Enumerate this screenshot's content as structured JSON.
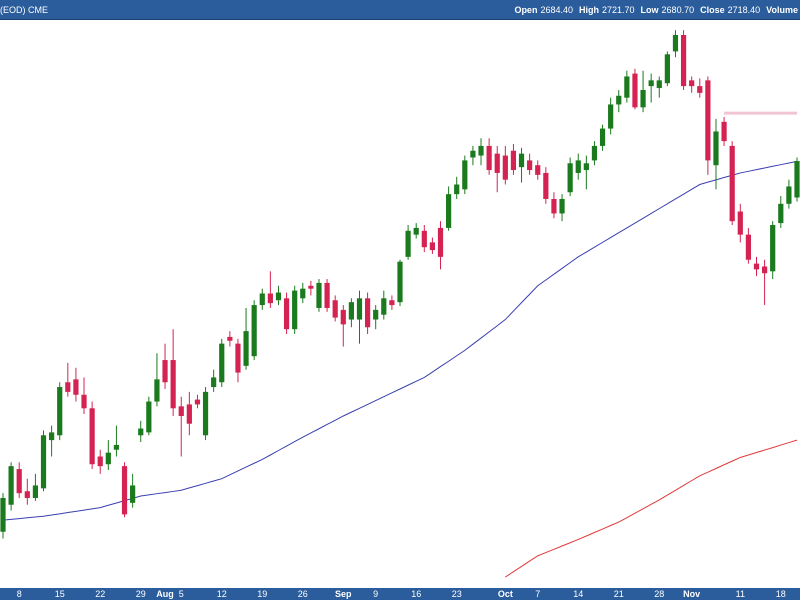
{
  "chart_data": {
    "type": "candlestick",
    "header": {
      "left": "(EOD) CME",
      "fields": [
        {
          "label": "Open",
          "value": "2684.40"
        },
        {
          "label": "High",
          "value": "2721.70"
        },
        {
          "label": "Low",
          "value": "2680.70"
        },
        {
          "label": "Close",
          "value": "2718.40"
        }
      ],
      "trailing": "Volume"
    },
    "categories": [
      null,
      null,
      "8",
      null,
      null,
      null,
      null,
      "15",
      null,
      null,
      null,
      null,
      "22",
      null,
      null,
      null,
      null,
      "29",
      null,
      null,
      "Aug",
      null,
      "5",
      null,
      null,
      null,
      null,
      "12",
      null,
      null,
      null,
      null,
      "19",
      null,
      null,
      null,
      null,
      "26",
      null,
      null,
      null,
      null,
      "Sep",
      null,
      null,
      null,
      "9",
      null,
      null,
      null,
      null,
      "16",
      null,
      null,
      null,
      null,
      "23",
      null,
      null,
      null,
      null,
      null,
      "Oct",
      null,
      null,
      null,
      "7",
      null,
      null,
      null,
      null,
      "14",
      null,
      null,
      null,
      null,
      "21",
      null,
      null,
      null,
      null,
      "28",
      null,
      null,
      null,
      "Nov",
      null,
      null,
      null,
      null,
      null,
      "11",
      null,
      null,
      null,
      null,
      "18",
      null,
      null
    ],
    "ohlc": {
      "open": [
        2372.5,
        2397.7,
        2431.0,
        2410.3,
        2404.0,
        2413.0,
        2458.0,
        2462.5,
        2512.0,
        2514.7,
        2500.3,
        2487.7,
        2442.7,
        2435.5,
        2449.0,
        2433.7,
        2399.5,
        2462.5,
        2465.2,
        2494.0,
        2532.7,
        2532.7,
        2489.5,
        2491.3,
        2495.8,
        2462.5,
        2507.5,
        2512.0,
        2554.3,
        2548.0,
        2527.3,
        2536.3,
        2584.0,
        2594.8,
        2588.5,
        2590.3,
        2561.5,
        2590.3,
        2602.0,
        2581.3,
        2604.7,
        2588.5,
        2579.5,
        2570.5,
        2570.5,
        2590.3,
        2570.5,
        2575.0,
        2588.5,
        2586.7,
        2629.0,
        2649.7,
        2653.3,
        2642.5,
        2656.0,
        2656.0,
        2687.5,
        2692.0,
        2721.7,
        2723.5,
        2732.5,
        2725.3,
        2723.5,
        2728.0,
        2712.7,
        2719.0,
        2714.5,
        2707.3,
        2683.0,
        2669.5,
        2689.3,
        2707.3,
        2710.0,
        2719.0,
        2732.5,
        2748.7,
        2771.2,
        2777.5,
        2800.0,
        2768.5,
        2788.3,
        2786.5,
        2791.0,
        2820.7,
        2836.0,
        2793.7,
        2788.3,
        2793.7,
        2714.5,
        2755.0,
        2732.5,
        2671.3,
        2649.7,
        2622.7,
        2620.0,
        2615.5,
        2660.5,
        2678.5,
        2684.4
      ],
      "high": [
        2408.5,
        2437.3,
        2437.3,
        2422.0,
        2426.5,
        2467.0,
        2471.5,
        2512.0,
        2530.0,
        2525.5,
        2516.5,
        2494.0,
        2449.0,
        2458.0,
        2471.5,
        2437.3,
        2426.5,
        2476.0,
        2498.5,
        2539.0,
        2548.0,
        2561.5,
        2498.5,
        2503.0,
        2500.3,
        2507.5,
        2523.7,
        2552.5,
        2559.7,
        2552.5,
        2581.3,
        2588.5,
        2599.3,
        2615.5,
        2602.0,
        2595.7,
        2602.0,
        2604.7,
        2606.5,
        2608.3,
        2608.3,
        2593.0,
        2584.0,
        2590.3,
        2597.5,
        2595.7,
        2584.0,
        2597.5,
        2593.0,
        2626.3,
        2658.7,
        2660.5,
        2658.7,
        2647.0,
        2662.3,
        2694.7,
        2703.7,
        2723.5,
        2732.5,
        2739.7,
        2739.7,
        2732.5,
        2732.5,
        2734.3,
        2730.7,
        2725.3,
        2719.0,
        2712.7,
        2689.3,
        2687.5,
        2721.7,
        2725.3,
        2723.5,
        2737.0,
        2752.3,
        2777.5,
        2784.7,
        2802.7,
        2804.5,
        2802.7,
        2800.0,
        2797.3,
        2820.7,
        2840.5,
        2840.5,
        2797.3,
        2795.5,
        2797.3,
        2757.7,
        2759.5,
        2737.0,
        2678.5,
        2656.0,
        2629.0,
        2626.3,
        2662.3,
        2685.7,
        2701.0,
        2721.7
      ],
      "low": [
        2366.2,
        2392.3,
        2404.0,
        2397.7,
        2401.3,
        2410.3,
        2442.7,
        2458.0,
        2498.5,
        2494.0,
        2482.3,
        2431.0,
        2426.5,
        2430.1,
        2442.7,
        2386.0,
        2395.0,
        2456.2,
        2462.5,
        2489.5,
        2505.7,
        2480.5,
        2442.7,
        2462.5,
        2487.7,
        2458.0,
        2503.0,
        2507.5,
        2545.3,
        2512.0,
        2523.7,
        2532.7,
        2579.5,
        2581.3,
        2584.0,
        2557.0,
        2557.0,
        2585.8,
        2593.0,
        2577.7,
        2577.7,
        2568.7,
        2545.3,
        2563.3,
        2548.0,
        2557.0,
        2561.5,
        2570.5,
        2579.5,
        2583.1,
        2626.3,
        2646.1,
        2633.5,
        2631.7,
        2617.3,
        2653.3,
        2683.0,
        2687.5,
        2714.5,
        2714.5,
        2705.5,
        2689.3,
        2696.5,
        2705.5,
        2698.3,
        2705.5,
        2701.0,
        2678.5,
        2665.0,
        2662.3,
        2685.7,
        2701.0,
        2692.0,
        2714.5,
        2728.0,
        2743.3,
        2764.0,
        2773.0,
        2766.7,
        2764.0,
        2773.0,
        2777.5,
        2788.3,
        2815.3,
        2784.7,
        2782.0,
        2777.5,
        2705.5,
        2692.0,
        2732.5,
        2658.7,
        2642.5,
        2622.7,
        2611.0,
        2584.0,
        2608.3,
        2656.0,
        2674.0,
        2680.7
      ],
      "close": [
        2404.0,
        2433.7,
        2408.5,
        2404.0,
        2415.7,
        2462.5,
        2465.2,
        2507.5,
        2503.0,
        2500.3,
        2487.7,
        2435.5,
        2433.7,
        2446.3,
        2453.5,
        2388.7,
        2415.7,
        2468.8,
        2494.0,
        2514.7,
        2512.0,
        2487.7,
        2480.5,
        2473.3,
        2491.3,
        2503.0,
        2516.5,
        2548.0,
        2550.7,
        2521.0,
        2559.7,
        2584.0,
        2594.8,
        2585.8,
        2595.7,
        2561.5,
        2597.5,
        2599.3,
        2599.3,
        2604.7,
        2581.3,
        2572.3,
        2566.0,
        2586.7,
        2590.3,
        2563.3,
        2579.5,
        2590.3,
        2584.0,
        2624.5,
        2653.3,
        2656.0,
        2638.0,
        2635.3,
        2629.0,
        2687.5,
        2696.5,
        2719.0,
        2728.0,
        2732.5,
        2710.0,
        2707.3,
        2701.0,
        2710.0,
        2725.3,
        2710.0,
        2705.5,
        2683.0,
        2669.5,
        2683.0,
        2716.3,
        2719.0,
        2716.3,
        2732.5,
        2748.7,
        2771.2,
        2779.3,
        2797.3,
        2768.5,
        2784.7,
        2793.7,
        2793.7,
        2818.0,
        2836.0,
        2788.3,
        2788.3,
        2782.0,
        2719.0,
        2746.0,
        2737.0,
        2662.3,
        2649.7,
        2626.3,
        2617.3,
        2613.7,
        2658.7,
        2678.5,
        2694.7,
        2718.4
      ]
    },
    "up_color": "#1b7a1e",
    "down_color": "#d42352",
    "lines": [
      {
        "color": "#3a3fb0",
        "width": 1,
        "values": [
          2383.3,
          2384.0,
          2384.7,
          2385.5,
          2386.2,
          2386.9,
          2388.1,
          2389.2,
          2390.4,
          2391.5,
          2392.7,
          2393.8,
          2395.0,
          2397.2,
          2399.3,
          2401.5,
          2403.6,
          2405.8,
          2406.9,
          2408.0,
          2409.0,
          2410.1,
          2411.2,
          2413.4,
          2415.5,
          2417.7,
          2419.8,
          2422.0,
          2425.6,
          2429.2,
          2432.8,
          2436.4,
          2440.0,
          2444.1,
          2448.3,
          2452.4,
          2456.6,
          2460.7,
          2464.7,
          2468.6,
          2472.6,
          2476.5,
          2480.5,
          2484.1,
          2487.7,
          2491.3,
          2494.9,
          2498.5,
          2502.1,
          2505.7,
          2509.3,
          2512.9,
          2516.5,
          2521.5,
          2526.6,
          2531.6,
          2536.7,
          2541.7,
          2547.5,
          2553.2,
          2559.0,
          2564.7,
          2570.5,
          2578.4,
          2586.3,
          2594.1,
          2602.0,
          2607.4,
          2612.8,
          2618.2,
          2623.6,
          2629.0,
          2633.5,
          2638.0,
          2642.5,
          2647.0,
          2651.5,
          2656.0,
          2660.5,
          2665.0,
          2669.5,
          2674.0,
          2678.5,
          2683.0,
          2687.5,
          2692.0,
          2696.5,
          2698.7,
          2700.8,
          2703.0,
          2705.1,
          2707.3,
          2708.8,
          2710.4,
          2711.9,
          2713.5,
          2715.0,
          2716.6,
          2718.1
        ]
      },
      {
        "color": "#e03a3a",
        "width": 1,
        "values": [
          null,
          null,
          null,
          null,
          null,
          null,
          null,
          null,
          null,
          null,
          null,
          null,
          null,
          null,
          null,
          null,
          null,
          null,
          null,
          null,
          null,
          null,
          null,
          null,
          null,
          null,
          null,
          null,
          null,
          null,
          null,
          null,
          null,
          null,
          null,
          null,
          null,
          null,
          null,
          null,
          null,
          null,
          null,
          null,
          null,
          null,
          null,
          null,
          null,
          null,
          null,
          null,
          null,
          null,
          null,
          null,
          null,
          null,
          null,
          null,
          null,
          null,
          2330.2,
          2335.2,
          2340.1,
          2345.1,
          2350.0,
          2353.1,
          2356.1,
          2359.2,
          2362.2,
          2365.3,
          2368.5,
          2371.8,
          2375.0,
          2378.3,
          2381.5,
          2385.6,
          2389.8,
          2393.9,
          2398.1,
          2402.2,
          2406.7,
          2411.2,
          2415.7,
          2420.2,
          2424.7,
          2428.1,
          2431.5,
          2435.0,
          2438.4,
          2441.8,
          2444.1,
          2446.4,
          2448.7,
          2451.0,
          2453.4,
          2455.7,
          2458.0
        ]
      },
      {
        "color": "#f2c4d2",
        "width": 3,
        "values": [
          null,
          null,
          null,
          null,
          null,
          null,
          null,
          null,
          null,
          null,
          null,
          null,
          null,
          null,
          null,
          null,
          null,
          null,
          null,
          null,
          null,
          null,
          null,
          null,
          null,
          null,
          null,
          null,
          null,
          null,
          null,
          null,
          null,
          null,
          null,
          null,
          null,
          null,
          null,
          null,
          null,
          null,
          null,
          null,
          null,
          null,
          null,
          null,
          null,
          null,
          null,
          null,
          null,
          null,
          null,
          null,
          null,
          null,
          null,
          null,
          null,
          null,
          null,
          null,
          null,
          null,
          null,
          null,
          null,
          null,
          null,
          null,
          null,
          null,
          null,
          null,
          null,
          null,
          null,
          null,
          null,
          null,
          null,
          null,
          null,
          null,
          null,
          null,
          null,
          2763.1,
          2763.1,
          2763.1,
          2763.1,
          2763.1,
          2763.1,
          2763.1,
          2763.1,
          2763.1,
          2763.1
        ]
      }
    ],
    "ylim": [
      2320,
      2850
    ]
  }
}
